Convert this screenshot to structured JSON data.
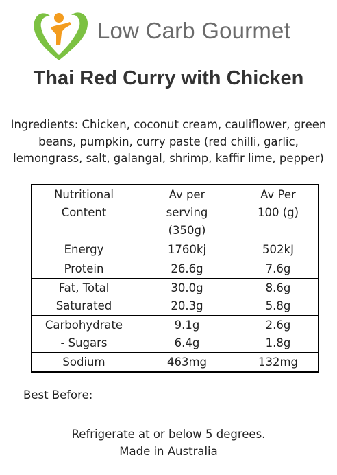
{
  "header": {
    "brand": "Low Carb Gourmet",
    "title": "Thai Red Curry with Chicken"
  },
  "ingredients": "Ingredients: Chicken, coconut cream, cauliflower, green beans, pumpkin, curry paste (red chilli, garlic, lemongrass, salt, galangal, shrimp, kaffir lime, pepper)",
  "table": {
    "rows": [
      [
        [
          "Nutritional",
          "Content"
        ],
        [
          "Av per",
          "serving",
          "(350g)"
        ],
        [
          "Av Per",
          "100 (g)"
        ]
      ],
      [
        [
          "Energy"
        ],
        [
          "1760kj"
        ],
        [
          "502kJ"
        ]
      ],
      [
        [
          "Protein"
        ],
        [
          "26.6g"
        ],
        [
          "7.6g"
        ]
      ],
      [
        [
          "Fat, Total",
          "Saturated"
        ],
        [
          "30.0g",
          "20.3g"
        ],
        [
          "8.6g",
          "5.8g"
        ]
      ],
      [
        [
          "Carbohydrate",
          "- Sugars"
        ],
        [
          "9.1g",
          "6.4g"
        ],
        [
          "2.6g",
          "1.8g"
        ]
      ],
      [
        [
          "Sodium"
        ],
        [
          "463mg"
        ],
        [
          "132mg"
        ]
      ]
    ]
  },
  "best_before": "Best Before:",
  "footer": [
    "Refrigerate at or below 5 degrees.",
    "Made in Australia"
  ]
}
